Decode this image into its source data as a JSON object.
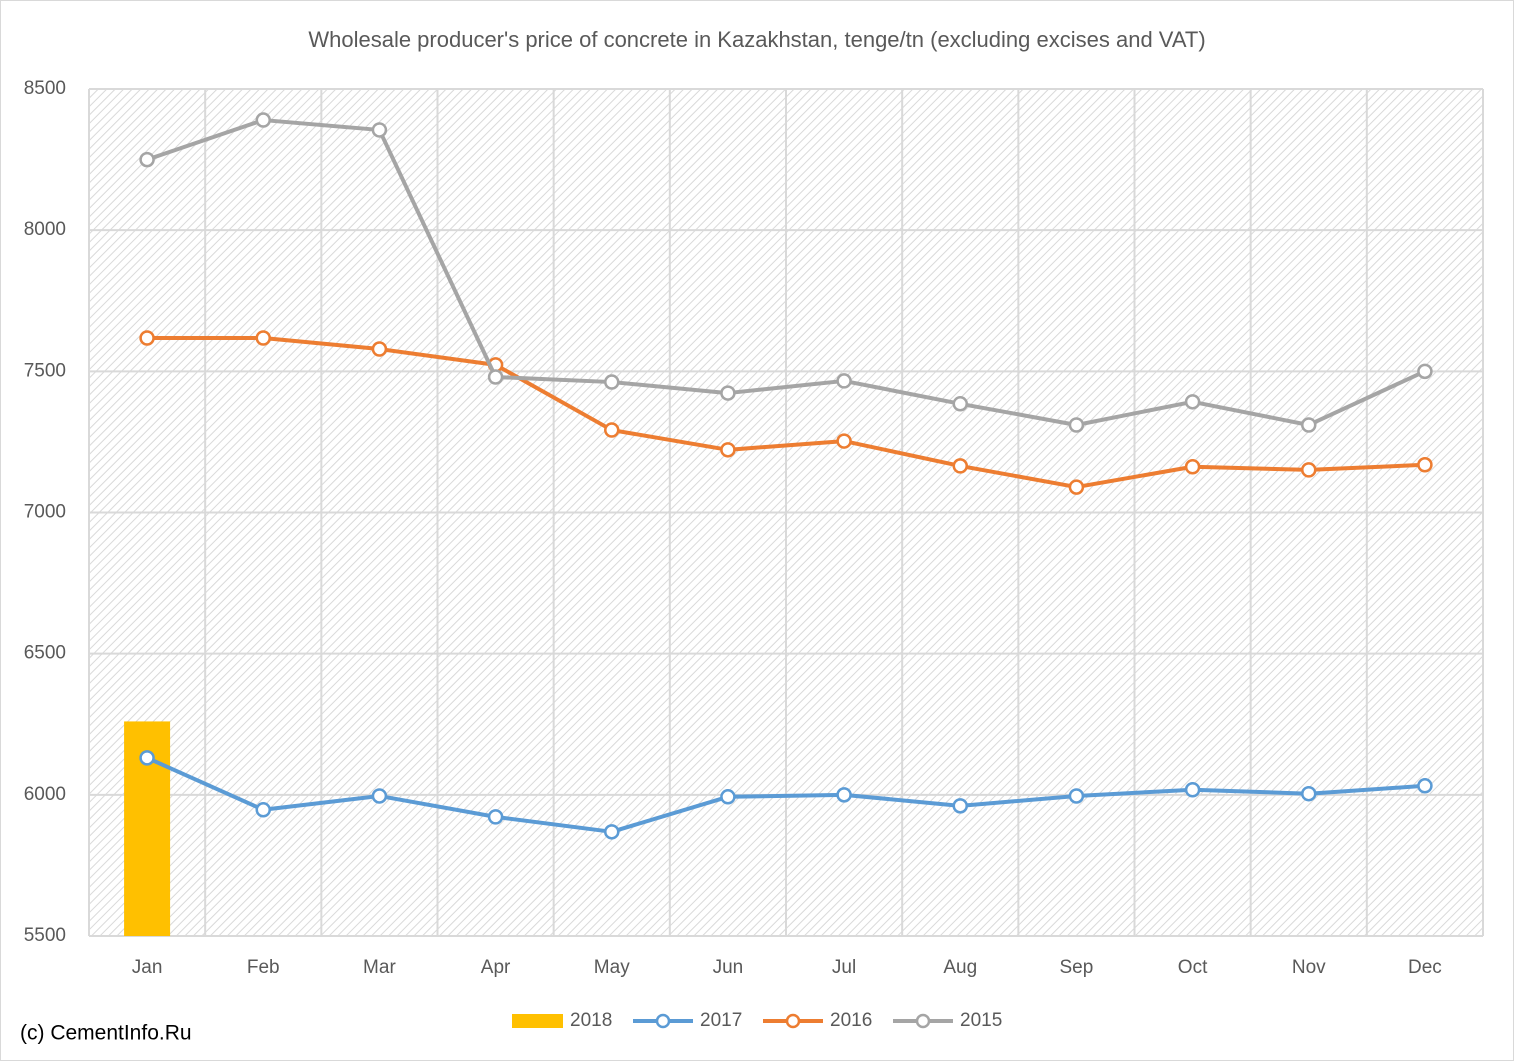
{
  "chart_data": {
    "type": "line",
    "title": "Wholesale producer's price of concrete in Kazakhstan, tenge/tn (excluding excises and VAT)",
    "source": "(c) CementInfo.Ru",
    "categories": [
      "Jan",
      "Feb",
      "Mar",
      "Apr",
      "May",
      "Jun",
      "Jul",
      "Aug",
      "Sep",
      "Oct",
      "Nov",
      "Dec"
    ],
    "series": [
      {
        "name": "2018",
        "type": "bar",
        "color": "#ffc000",
        "values": [
          6260,
          null,
          null,
          null,
          null,
          null,
          null,
          null,
          null,
          null,
          null,
          null
        ]
      },
      {
        "name": "2017",
        "type": "line",
        "color": "#5b9bd5",
        "values": [
          6131,
          5947,
          5996,
          5922,
          5869,
          5993,
          6000,
          5961,
          5996,
          6018,
          6004,
          6032
        ]
      },
      {
        "name": "2016",
        "type": "line",
        "color": "#ed7d31",
        "values": [
          7618,
          7618,
          7579,
          7523,
          7292,
          7222,
          7253,
          7165,
          7090,
          7162,
          7151,
          7169
        ]
      },
      {
        "name": "2015",
        "type": "line",
        "color": "#a5a5a5",
        "values": [
          8250,
          8390,
          8355,
          7480,
          7462,
          7423,
          7466,
          7385,
          7310,
          7392,
          7310,
          7500
        ]
      }
    ],
    "ylim": [
      5500,
      8500
    ],
    "yticks": [
      5500,
      6000,
      6500,
      7000,
      7500,
      8000,
      8500
    ],
    "grid": true,
    "legend": "bottom"
  }
}
